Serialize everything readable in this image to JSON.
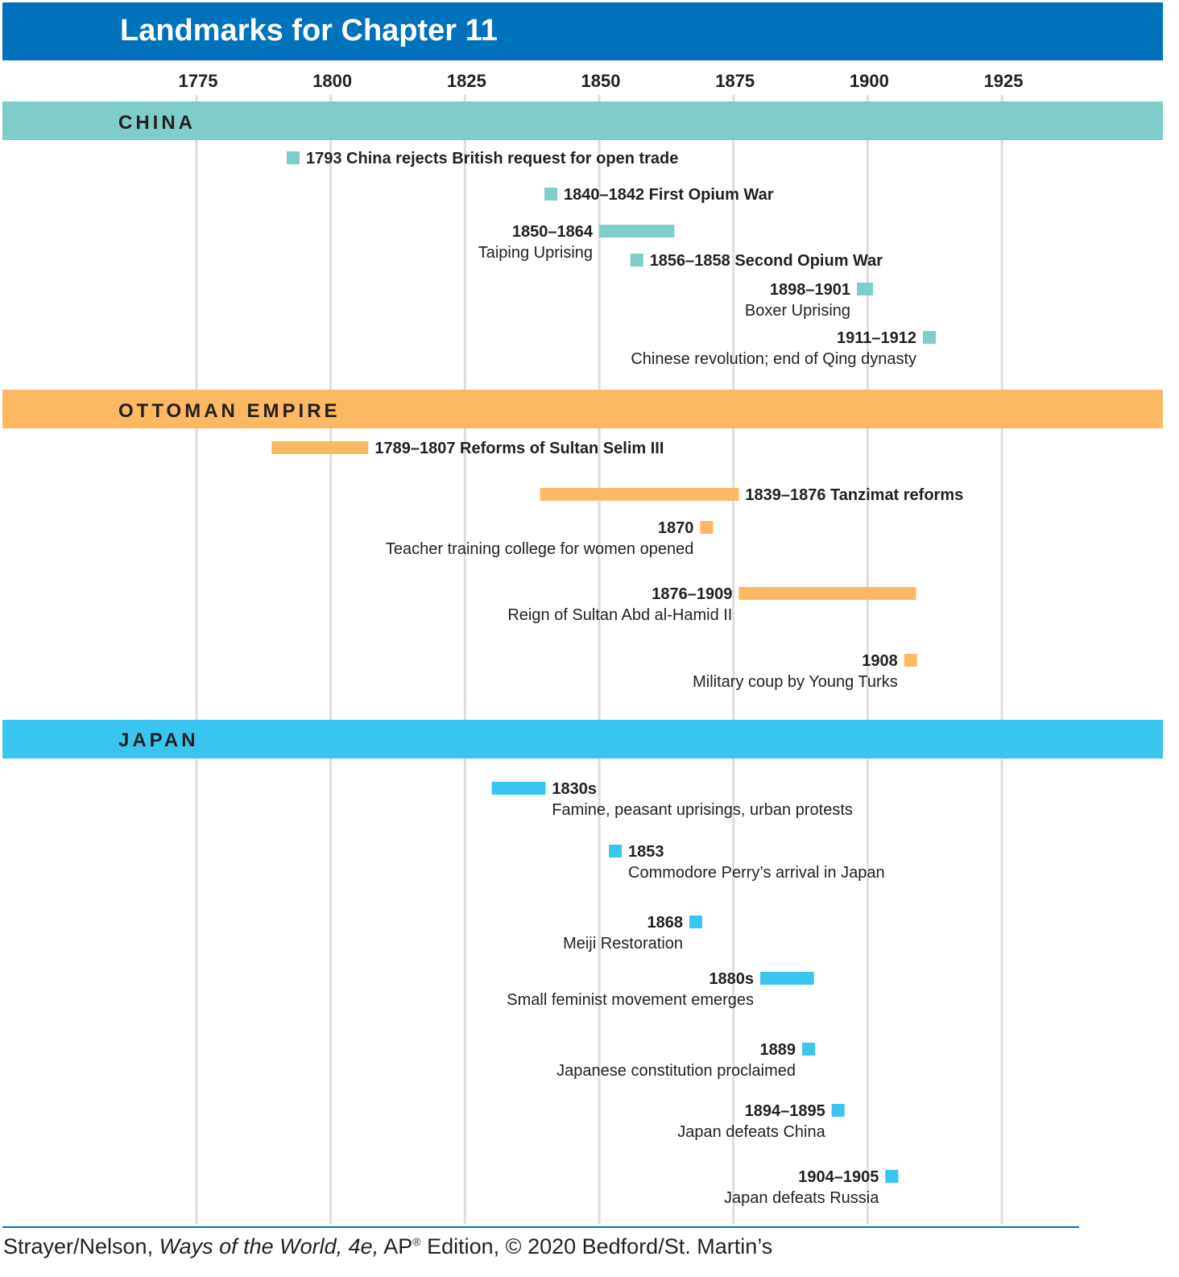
{
  "title": "Landmarks for Chapter 11",
  "credit": {
    "authors": "Strayer/Nelson,",
    "book_title": "Ways of the World, 4e,",
    "ap": "AP",
    "reg_mark": "®",
    "rest": "Edition, © 2020 Bedford/St. Martin’s"
  },
  "colors": {
    "header": "#0072bc",
    "china": "#7ecdc8",
    "ottoman": "#fdb863",
    "japan": "#3ac5f0",
    "gridline": "#dddddd",
    "text": "#231f20"
  },
  "chart_data": {
    "type": "timeline",
    "axis": {
      "ticks": [
        1775,
        1800,
        1825,
        1850,
        1875,
        1900,
        1925
      ],
      "range": [
        1775,
        1925
      ]
    },
    "sections": [
      {
        "id": "china",
        "label": "CHINA",
        "color_key": "china",
        "events": [
          {
            "years": "1793",
            "desc": "China rejects British request for open trade",
            "start": 1793,
            "end": 1793,
            "layout": "inline"
          },
          {
            "years": "1840–1842",
            "desc": "First Opium War",
            "start": 1840,
            "end": 1842,
            "layout": "inline"
          },
          {
            "years": "1850–1864",
            "desc": "Taiping Uprising",
            "start": 1850,
            "end": 1864,
            "layout": "stack-left"
          },
          {
            "years": "1856–1858",
            "desc": "Second Opium War",
            "start": 1856,
            "end": 1858,
            "layout": "inline"
          },
          {
            "years": "1898–1901",
            "desc": "Boxer Uprising",
            "start": 1898,
            "end": 1901,
            "layout": "stack-left"
          },
          {
            "years": "1911–1912",
            "desc": "Chinese revolution; end of Qing dynasty",
            "start": 1911,
            "end": 1912,
            "layout": "stack-left"
          }
        ]
      },
      {
        "id": "ottoman",
        "label": "OTTOMAN EMPIRE",
        "color_key": "ottoman",
        "events": [
          {
            "years": "1789–1807",
            "desc": "Reforms of Sultan Selim III",
            "start": 1789,
            "end": 1807,
            "layout": "inline"
          },
          {
            "years": "1839–1876",
            "desc": "Tanzimat reforms",
            "start": 1839,
            "end": 1876,
            "layout": "inline"
          },
          {
            "years": "1870",
            "desc": "Teacher training college for women opened",
            "start": 1870,
            "end": 1870,
            "layout": "stack-left"
          },
          {
            "years": "1876–1909",
            "desc": "Reign of Sultan Abd al-Hamid II",
            "start": 1876,
            "end": 1909,
            "layout": "stack-left"
          },
          {
            "years": "1908",
            "desc": "Military coup by Young Turks",
            "start": 1908,
            "end": 1908,
            "layout": "stack-left"
          }
        ]
      },
      {
        "id": "japan",
        "label": "JAPAN",
        "color_key": "japan",
        "events": [
          {
            "years": "1830s",
            "desc": "Famine, peasant uprisings, urban protests",
            "start": 1830,
            "end": 1840,
            "layout": "stack-right"
          },
          {
            "years": "1853",
            "desc": "Commodore Perry’s arrival in Japan",
            "start": 1853,
            "end": 1853,
            "layout": "stack-right"
          },
          {
            "years": "1868",
            "desc": "Meiji Restoration",
            "start": 1868,
            "end": 1868,
            "layout": "stack-left"
          },
          {
            "years": "1880s",
            "desc": "Small feminist movement emerges",
            "start": 1880,
            "end": 1890,
            "layout": "stack-left"
          },
          {
            "years": "1889",
            "desc": "Japanese constitution proclaimed",
            "start": 1889,
            "end": 1889,
            "layout": "stack-left"
          },
          {
            "years": "1894–1895",
            "desc": "Japan defeats China",
            "start": 1894,
            "end": 1895,
            "layout": "stack-left"
          },
          {
            "years": "1904–1905",
            "desc": "Japan defeats Russia",
            "start": 1904,
            "end": 1905,
            "layout": "stack-left"
          }
        ]
      }
    ]
  }
}
